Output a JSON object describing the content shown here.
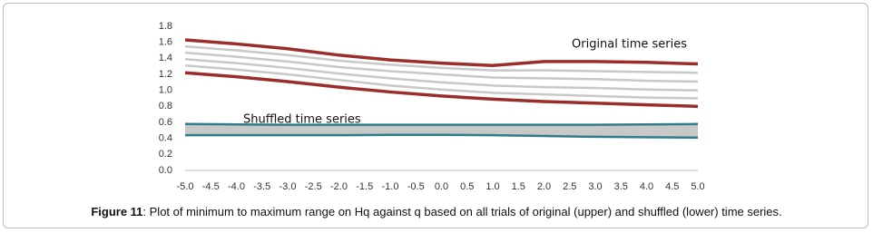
{
  "chart_data": {
    "type": "line",
    "x": [
      -5,
      -4,
      -3,
      -2,
      -1,
      0,
      1,
      2,
      3,
      4,
      5
    ],
    "series": [
      {
        "color": "#9b2d2a",
        "values": [
          1.63,
          1.58,
          1.52,
          1.44,
          1.38,
          1.34,
          1.31,
          1.36,
          1.36,
          1.35,
          1.33
        ]
      },
      {
        "color": "#c8c8c8",
        "values": [
          1.55,
          1.5,
          1.44,
          1.37,
          1.32,
          1.28,
          1.25,
          1.25,
          1.24,
          1.23,
          1.22
        ]
      },
      {
        "color": "#c8c8c8",
        "values": [
          1.47,
          1.42,
          1.36,
          1.29,
          1.24,
          1.2,
          1.16,
          1.15,
          1.14,
          1.12,
          1.11
        ]
      },
      {
        "color": "#c8c8c8",
        "values": [
          1.39,
          1.34,
          1.28,
          1.21,
          1.15,
          1.1,
          1.06,
          1.04,
          1.03,
          1.01,
          1.0
        ]
      },
      {
        "color": "#c8c8c8",
        "values": [
          1.31,
          1.26,
          1.2,
          1.13,
          1.06,
          1.01,
          0.97,
          0.95,
          0.93,
          0.91,
          0.9
        ]
      },
      {
        "color": "#9b2d2a",
        "values": [
          1.22,
          1.17,
          1.11,
          1.04,
          0.98,
          0.93,
          0.89,
          0.86,
          0.84,
          0.82,
          0.8
        ]
      },
      {
        "color": "#2e7d8c",
        "values": [
          0.58,
          0.575,
          0.57,
          0.57,
          0.57,
          0.57,
          0.57,
          0.57,
          0.57,
          0.575,
          0.58
        ]
      },
      {
        "color": "#2e7d8c",
        "values": [
          0.44,
          0.44,
          0.44,
          0.44,
          0.445,
          0.445,
          0.44,
          0.43,
          0.42,
          0.415,
          0.41
        ]
      }
    ],
    "band_color": "#c8c8c8",
    "xlim": [
      -5,
      5
    ],
    "xticks": [
      {
        "value": -5,
        "label": "-5.0"
      },
      -4.5,
      {
        "value": -4,
        "label": "-4.0"
      },
      -3.5,
      {
        "value": -3,
        "label": "-3.0"
      },
      -2.5,
      {
        "value": -2,
        "label": "-2.0"
      },
      -1.5,
      {
        "value": -1,
        "label": "-1.0"
      },
      -0.5,
      {
        "value": 0,
        "label": "0.0"
      },
      0.5,
      {
        "value": 1,
        "label": "1.0"
      },
      1.5,
      {
        "value": 2,
        "label": "2.0"
      },
      2.5,
      {
        "value": 3,
        "label": "3.0"
      },
      3.5,
      {
        "value": 4,
        "label": "4.0"
      },
      4.5,
      {
        "value": 5,
        "label": "5.0"
      }
    ],
    "ylim": [
      0,
      1.8
    ],
    "yticks": [
      {
        "value": 0,
        "label": "0.0"
      },
      0.2,
      0.4,
      0.6,
      0.8,
      {
        "value": 1,
        "label": "1.0"
      },
      1.2,
      1.4,
      1.6,
      1.8
    ],
    "annotations": [
      "Original time series",
      "Shuffled time series"
    ],
    "caption_label": "Figure 11",
    "caption": ": Plot of minimum to maximum range on Hq against q based on all trials of original (upper) and shuffled (lower) time series."
  }
}
